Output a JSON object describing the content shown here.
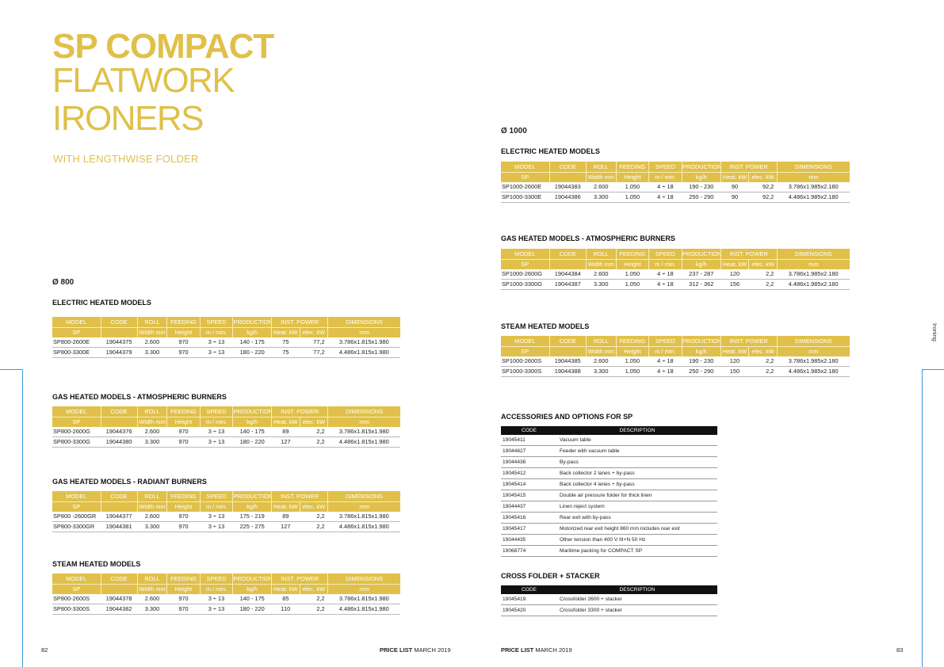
{
  "title": {
    "line1": "SP COMPACT",
    "line2": "FLATWORK",
    "line3": "IRONERS",
    "subtitle": "WITH LENGTHWISE FOLDER"
  },
  "header": {
    "model": "MODEL",
    "code": "CODE",
    "roll": "ROLL",
    "feeding": "FEEDING",
    "speed": "SPEED",
    "production": "PRODUCTION",
    "inst_power": "INST. POWER",
    "dimensions": "DIMENSIONS",
    "sp": "SP",
    "width": "Width mm",
    "height": "Height",
    "m_min": "m / min.",
    "kgh": "kg/h",
    "heat_kw": "Heat. kW",
    "elec_kw": "elec. kW",
    "mm": "mm"
  },
  "left": {
    "diameter": "Ø 800",
    "electric": {
      "title": "ELECTRIC HEATED MODELS",
      "rows": [
        [
          "SP800-2600E",
          "19044375",
          "2.600",
          "970",
          "3 ÷ 13",
          "140 - 175",
          "75",
          "77,2",
          "3.786x1.815x1.980"
        ],
        [
          "SP800-3300E",
          "19044379",
          "3.300",
          "970",
          "3 ÷ 13",
          "180 - 220",
          "75",
          "77,2",
          "4.486x1.815x1.980"
        ]
      ]
    },
    "gas_atm": {
      "title": "GAS HEATED MODELS - ATMOSPHERIC BURNERS",
      "rows": [
        [
          "SP800-2600G",
          "19044376",
          "2.600",
          "970",
          "3 ÷ 13",
          "140 - 175",
          "89",
          "2,2",
          "3.786x1.815x1.980"
        ],
        [
          "SP800-3300G",
          "19044380",
          "3.300",
          "970",
          "3 ÷ 13",
          "180 - 220",
          "127",
          "2,2",
          "4.486x1.815x1.980"
        ]
      ]
    },
    "gas_rad": {
      "title": "GAS HEATED MODELS - RADIANT BURNERS",
      "rows": [
        [
          "SP800 -2600GR",
          "19044377",
          "2.600",
          "970",
          "3 ÷ 13",
          "175 - 219",
          "89",
          "2,2",
          "3.786x1.815x1.980"
        ],
        [
          "SP800-3300GR",
          "19044381",
          "3.300",
          "970",
          "3 ÷ 13",
          "225 - 275",
          "127",
          "2,2",
          "4.486x1.815x1.980"
        ]
      ]
    },
    "steam": {
      "title": "STEAM HEATED MODELS",
      "rows": [
        [
          "SP800-2600S",
          "19044378",
          "2.600",
          "970",
          "3 ÷ 13",
          "140 - 175",
          "85",
          "2,2",
          "3.786x1.815x1.980"
        ],
        [
          "SP800-3300S",
          "19044382",
          "3.300",
          "970",
          "3 ÷ 13",
          "180 - 220",
          "110",
          "2,2",
          "4.486x1.815x1.980"
        ]
      ]
    }
  },
  "right": {
    "diameter": "Ø 1000",
    "electric": {
      "title": "ELECTRIC HEATED MODELS",
      "rows": [
        [
          "SP1000-2600E",
          "19044383",
          "2.600",
          "1.050",
          "4 ÷ 18",
          "190 - 230",
          "90",
          "92,2",
          "3.786x1.985x2.180"
        ],
        [
          "SP1000-3300E",
          "19044386",
          "3.300",
          "1.050",
          "4 ÷ 18",
          "250 - 290",
          "90",
          "92,2",
          "4.486x1.985x2.180"
        ]
      ]
    },
    "gas_atm": {
      "title": "GAS HEATED MODELS - ATMOSPHERIC BURNERS",
      "rows": [
        [
          "SP1000-2600G",
          "19044384",
          "2.600",
          "1.050",
          "4 ÷ 18",
          "237 - 287",
          "120",
          "2,2",
          "3.786x1.985x2.180"
        ],
        [
          "SP1000-3300G",
          "19044387",
          "3.300",
          "1.050",
          "4 ÷ 18",
          "312 - 362",
          "156",
          "2,2",
          "4.486x1.985x2.180"
        ]
      ]
    },
    "steam": {
      "title": "STEAM HEATED MODELS",
      "rows": [
        [
          "SP1000-2600S",
          "19044385",
          "2.600",
          "1.050",
          "4 ÷ 18",
          "190 - 230",
          "120",
          "2,2",
          "3.786x1.985x2.180"
        ],
        [
          "SP1000-3300S",
          "19044388",
          "3.300",
          "1.050",
          "4 ÷ 18",
          "250 - 290",
          "150",
          "2,2",
          "4.486x1.985x2.180"
        ]
      ]
    },
    "accessories": {
      "title": "ACCESSORIES AND OPTIONS FOR SP",
      "code_header": "CODE",
      "desc_header": "DESCRIPTION",
      "rows": [
        [
          "19045411",
          "Vacuum table"
        ],
        [
          "19044627",
          "Feeder with vacuum table"
        ],
        [
          "19044436",
          "By-pass"
        ],
        [
          "19045412",
          "Back collector 2 lanes + by-pass"
        ],
        [
          "19045414",
          "Back collector 4 lanes + by-pass"
        ],
        [
          "19045415",
          "Double air pressure folder for thick linen"
        ],
        [
          "19044437",
          "Linen reject system"
        ],
        [
          "19045416",
          "Rear exit with by-pass"
        ],
        [
          "19045417",
          "Motorized rear exit height 860 mm includes rear exit"
        ],
        [
          "19044435",
          "Other tension than 400 V III+N 50 Hz"
        ],
        [
          "19068774",
          "Maritime packing for COMPACT SP"
        ]
      ]
    },
    "cross_folder": {
      "title": "CROSS FOLDER + STACKER",
      "code_header": "CODE",
      "desc_header": "DESCRIPTION",
      "rows": [
        [
          "19045419",
          "Crossfolder 2600 + stacker"
        ],
        [
          "19045420",
          "Crossfolder 3300 + stacker"
        ]
      ]
    }
  },
  "footer": {
    "left_page": "82",
    "right_page": "83",
    "price_list_bold": "PRICE LIST",
    "price_list_date": "MARCH 2019",
    "side_label": "Ironing"
  },
  "colors": {
    "gold": "#e0c04a",
    "black": "#111111",
    "side_line": "#3a9ad9"
  }
}
